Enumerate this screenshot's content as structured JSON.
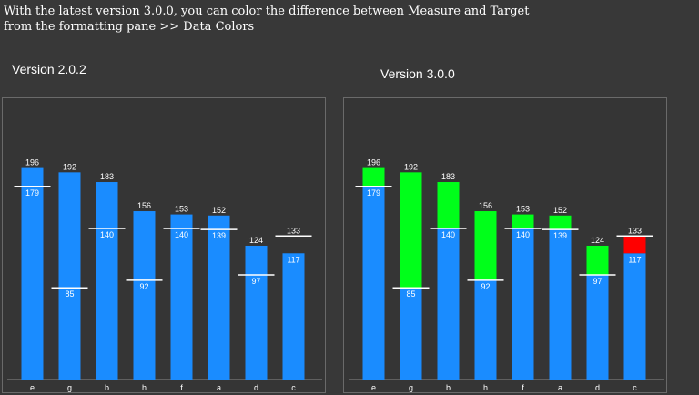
{
  "caption": "With the latest version 3.0.0, you can color the difference between Measure and Target\nfrom the formatting pane >> Data Colors",
  "colors": {
    "bar": "#1a8cff",
    "above_target": "#00ff1a",
    "below_target": "#ff0000",
    "target_line": "#ffffff",
    "panel_bg": "#353535",
    "page_bg": "#383838"
  },
  "chart_data": [
    {
      "type": "bar",
      "title": "Version 2.0.2",
      "categories": [
        "e",
        "g",
        "b",
        "h",
        "f",
        "a",
        "d",
        "c"
      ],
      "series": [
        {
          "name": "Measure",
          "values": [
            196,
            192,
            183,
            156,
            153,
            152,
            124,
            117
          ]
        },
        {
          "name": "Target",
          "values": [
            179,
            85,
            140,
            92,
            140,
            139,
            97,
            133
          ]
        }
      ],
      "difference_colors": false,
      "ylim": [
        0,
        210
      ],
      "grid": false
    },
    {
      "type": "bar",
      "title": "Version 3.0.0",
      "categories": [
        "e",
        "g",
        "b",
        "h",
        "f",
        "a",
        "d",
        "c"
      ],
      "series": [
        {
          "name": "Measure",
          "values": [
            196,
            192,
            183,
            156,
            153,
            152,
            124,
            117
          ]
        },
        {
          "name": "Target",
          "values": [
            179,
            85,
            140,
            92,
            140,
            139,
            97,
            133
          ]
        }
      ],
      "difference_colors": true,
      "ylim": [
        0,
        210
      ],
      "grid": false
    }
  ]
}
